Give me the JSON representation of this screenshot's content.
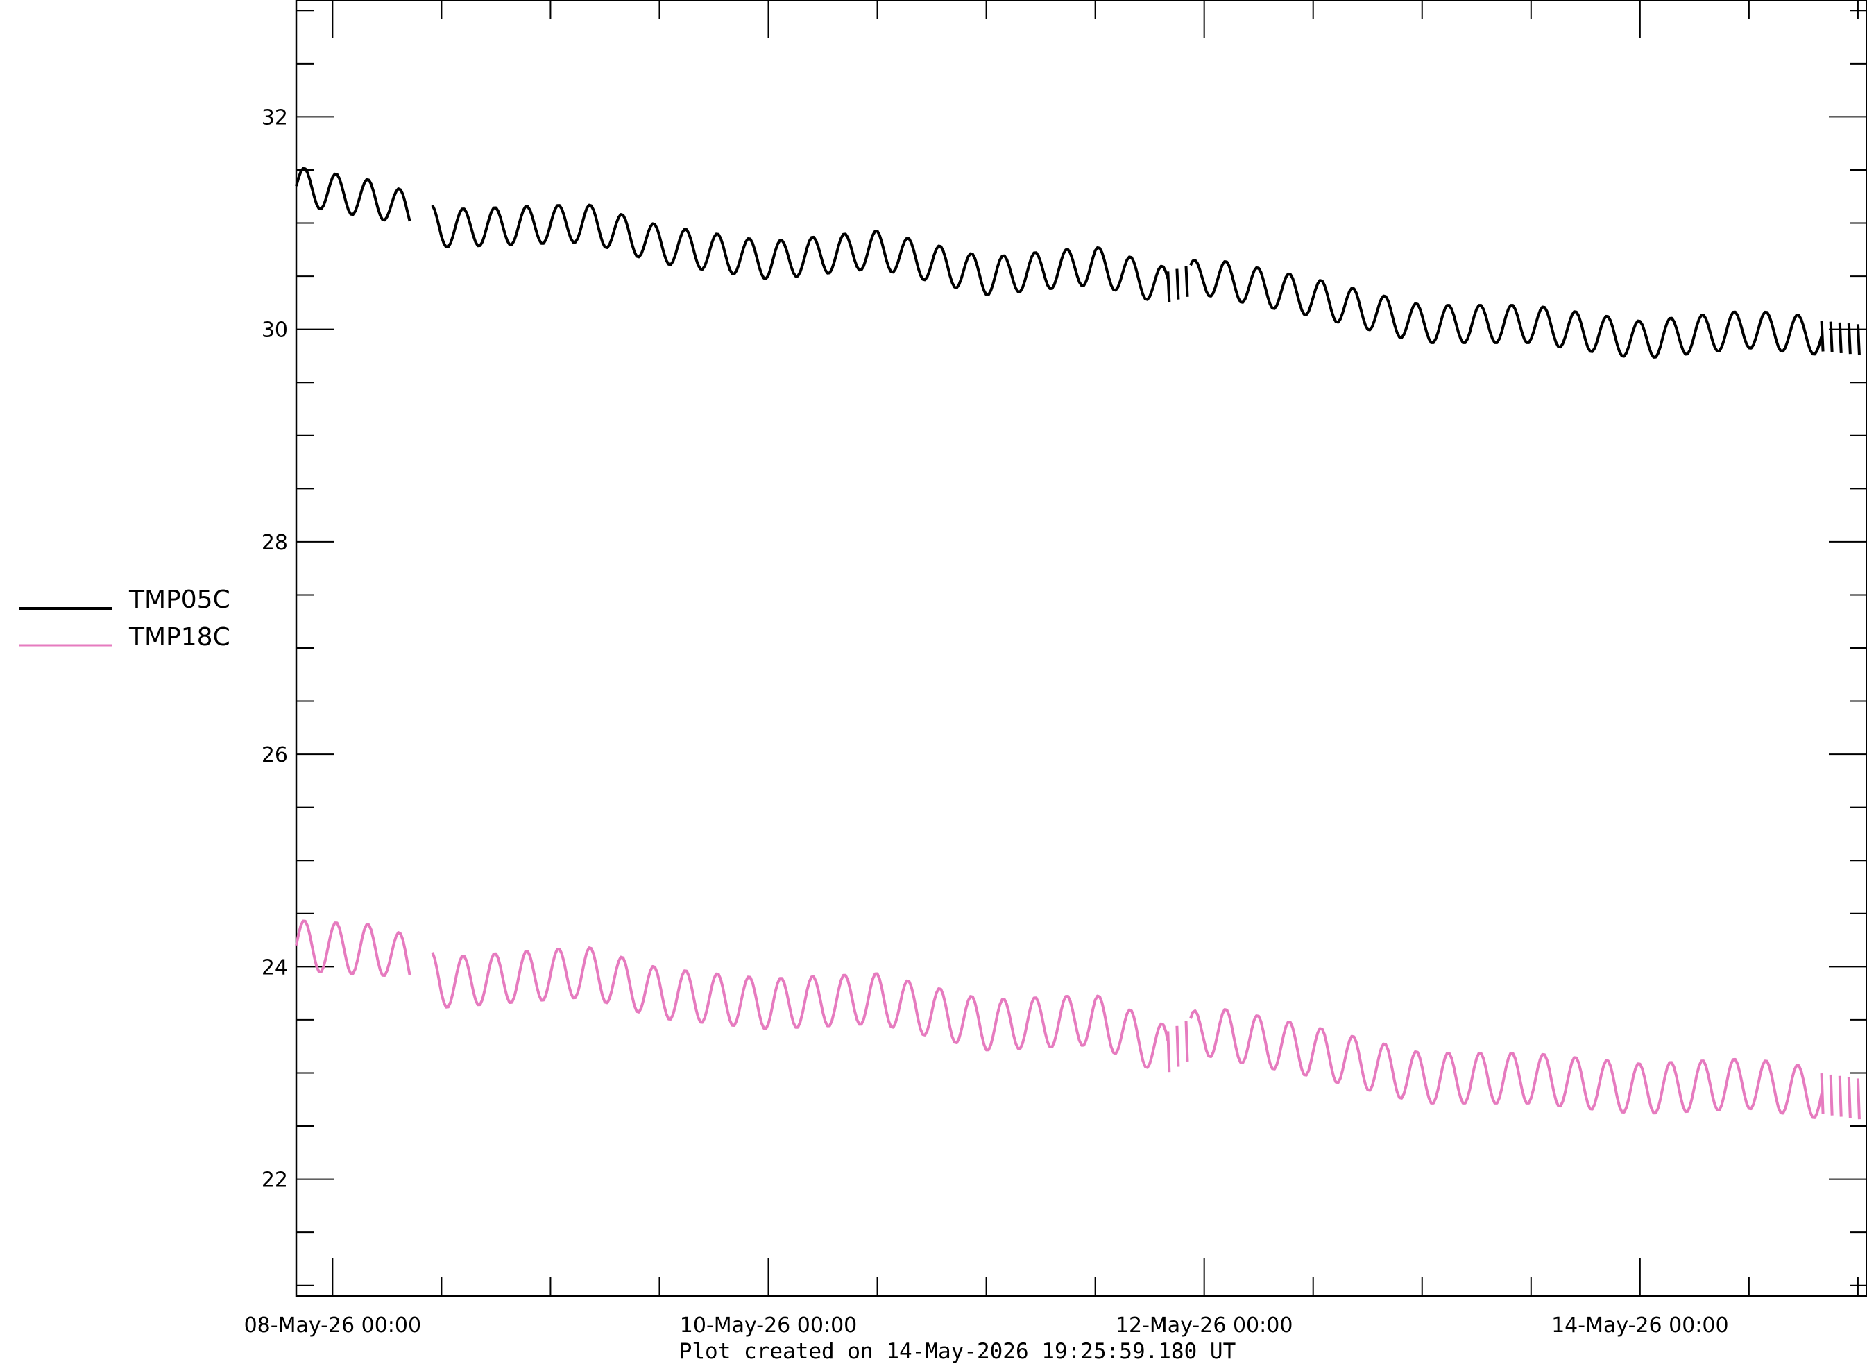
{
  "chart_data": {
    "type": "line",
    "title": "",
    "xlabel": "",
    "ylabel": "",
    "x_axis": {
      "type": "time",
      "range": [
        "2026-05-07 20:00",
        "2026-05-15 01:00"
      ],
      "major_ticks": [
        "08-May-26 00:00",
        "10-May-26 00:00",
        "12-May-26 00:00",
        "14-May-26 00:00"
      ],
      "minor_tick_interval_hours": 12
    },
    "y_axis": {
      "range": [
        20.9,
        33.1
      ],
      "ticks": [
        22,
        24,
        26,
        28,
        30,
        32
      ],
      "minor_tick_interval": 0.5
    },
    "grid": false,
    "legend_position": "left",
    "series": [
      {
        "name": "TMP05C",
        "color": "#000000",
        "amplitude": 0.18,
        "cycle_hours": 3.5,
        "segments": [
          {
            "from": "2026-05-07 20:00",
            "to": "2026-05-08 08:30"
          },
          {
            "from": "2026-05-08 11:00",
            "to": "2026-05-11 20:00"
          },
          {
            "from": "2026-05-11 20:00",
            "to": "2026-05-11 22:30",
            "sparse": true
          },
          {
            "from": "2026-05-11 22:30",
            "to": "2026-05-14 20:00"
          },
          {
            "from": "2026-05-14 20:00",
            "to": "2026-05-15 00:30",
            "sparse": true
          }
        ],
        "baseline": [
          {
            "x": "2026-05-07 20:00",
            "y": 31.35
          },
          {
            "x": "2026-05-08 06:00",
            "y": 31.2
          },
          {
            "x": "2026-05-08 12:00",
            "y": 30.95
          },
          {
            "x": "2026-05-09 04:00",
            "y": 31.0
          },
          {
            "x": "2026-05-09 12:00",
            "y": 30.8
          },
          {
            "x": "2026-05-10 00:00",
            "y": 30.65
          },
          {
            "x": "2026-05-10 12:00",
            "y": 30.75
          },
          {
            "x": "2026-05-11 00:00",
            "y": 30.5
          },
          {
            "x": "2026-05-11 12:00",
            "y": 30.6
          },
          {
            "x": "2026-05-11 20:00",
            "y": 30.4
          },
          {
            "x": "2026-05-12 00:00",
            "y": 30.5
          },
          {
            "x": "2026-05-12 12:00",
            "y": 30.3
          },
          {
            "x": "2026-05-13 00:00",
            "y": 30.05
          },
          {
            "x": "2026-05-13 12:00",
            "y": 30.05
          },
          {
            "x": "2026-05-14 00:00",
            "y": 29.9
          },
          {
            "x": "2026-05-14 12:00",
            "y": 30.0
          },
          {
            "x": "2026-05-15 00:30",
            "y": 29.9
          }
        ]
      },
      {
        "name": "TMP18C",
        "color": "#e67bbf",
        "amplitude": 0.24,
        "cycle_hours": 3.5,
        "segments": [
          {
            "from": "2026-05-07 20:00",
            "to": "2026-05-08 08:30"
          },
          {
            "from": "2026-05-08 11:00",
            "to": "2026-05-11 20:00"
          },
          {
            "from": "2026-05-11 20:00",
            "to": "2026-05-11 22:30",
            "sparse": true
          },
          {
            "from": "2026-05-11 22:30",
            "to": "2026-05-14 20:00"
          },
          {
            "from": "2026-05-14 20:00",
            "to": "2026-05-15 00:30",
            "sparse": true
          }
        ],
        "baseline": [
          {
            "x": "2026-05-07 20:00",
            "y": 24.2
          },
          {
            "x": "2026-05-08 06:00",
            "y": 24.15
          },
          {
            "x": "2026-05-08 12:00",
            "y": 23.85
          },
          {
            "x": "2026-05-09 04:00",
            "y": 23.95
          },
          {
            "x": "2026-05-09 12:00",
            "y": 23.75
          },
          {
            "x": "2026-05-10 00:00",
            "y": 23.65
          },
          {
            "x": "2026-05-10 12:00",
            "y": 23.7
          },
          {
            "x": "2026-05-11 00:00",
            "y": 23.45
          },
          {
            "x": "2026-05-11 12:00",
            "y": 23.5
          },
          {
            "x": "2026-05-11 20:00",
            "y": 23.2
          },
          {
            "x": "2026-05-12 00:00",
            "y": 23.4
          },
          {
            "x": "2026-05-12 12:00",
            "y": 23.2
          },
          {
            "x": "2026-05-13 00:00",
            "y": 22.95
          },
          {
            "x": "2026-05-13 12:00",
            "y": 22.95
          },
          {
            "x": "2026-05-14 00:00",
            "y": 22.85
          },
          {
            "x": "2026-05-14 12:00",
            "y": 22.9
          },
          {
            "x": "2026-05-15 00:30",
            "y": 22.75
          }
        ]
      }
    ],
    "footer": "Plot created on 14-May-2026 19:25:59.180 UT"
  }
}
